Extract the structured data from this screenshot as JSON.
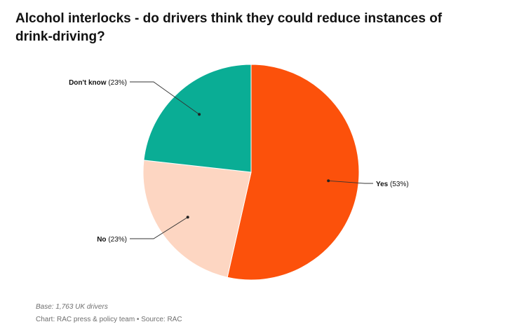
{
  "header": {
    "title": "Alcohol interlocks - do drivers think they could reduce instances of drink-driving?"
  },
  "chart_data": {
    "type": "pie",
    "slices": [
      {
        "label": "Yes",
        "value": 53,
        "display": "(53%)",
        "color": "#fc510b"
      },
      {
        "label": "No",
        "value": 23,
        "display": "(23%)",
        "color": "#fdd6c2"
      },
      {
        "label": "Don't know",
        "value": 23,
        "display": "(23%)",
        "color": "#0aad95"
      }
    ]
  },
  "footer": {
    "base": "Base: 1,763 UK drivers",
    "credit": "Chart: RAC press & policy team • Source: RAC"
  }
}
